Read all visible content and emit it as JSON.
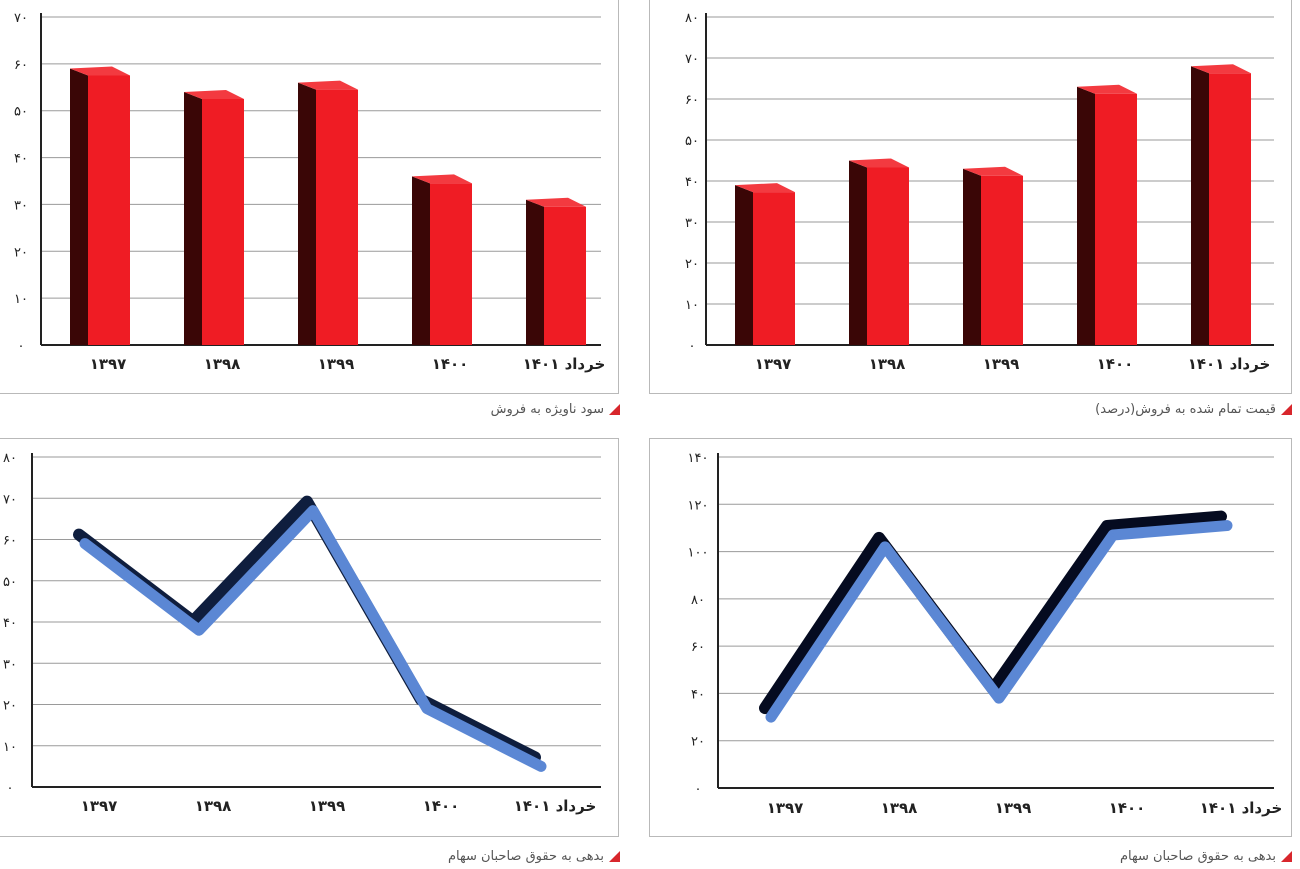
{
  "chart_data": [
    {
      "id": "top-left",
      "type": "bar",
      "caption": "سود ناویژه به فروش",
      "categories": [
        "۱۳۹۷",
        "۱۳۹۸",
        "۱۳۹۹",
        "۱۴۰۰",
        "خرداد ۱۴۰۱"
      ],
      "values": [
        59,
        54,
        56,
        36,
        31
      ],
      "ylim": [
        0,
        70
      ],
      "yticks": [
        "۰",
        "۱۰",
        "۲۰",
        "۳۰",
        "۴۰",
        "۵۰",
        "۶۰",
        "۷۰"
      ],
      "grid": true,
      "colors": {
        "front": "#ef1c24",
        "side": "#3a0606",
        "top": "#f33a40"
      }
    },
    {
      "id": "top-right",
      "type": "bar",
      "caption": "قیمت تمام شده به فروش(درصد)",
      "categories": [
        "۱۳۹۷",
        "۱۳۹۸",
        "۱۳۹۹",
        "۱۴۰۰",
        "خرداد ۱۴۰۱"
      ],
      "values": [
        39,
        45,
        43,
        63,
        68
      ],
      "ylim": [
        0,
        80
      ],
      "yticks": [
        "۰",
        "۱۰",
        "۲۰",
        "۳۰",
        "۴۰",
        "۵۰",
        "۶۰",
        "۷۰",
        "۸۰"
      ],
      "grid": true,
      "colors": {
        "front": "#ef1c24",
        "side": "#3a0606",
        "top": "#f33a40"
      }
    },
    {
      "id": "bottom-left",
      "type": "line",
      "caption": "بدهی به حقوق صاحبان سهام",
      "categories": [
        "۱۳۹۷",
        "۱۳۹۸",
        "۱۳۹۹",
        "۱۴۰۰",
        "خرداد ۱۴۰۱"
      ],
      "values": [
        59,
        38,
        67,
        19,
        5
      ],
      "ylim": [
        0,
        80
      ],
      "yticks": [
        "۰",
        "۱۰",
        "۲۰",
        "۳۰",
        "۴۰",
        "۵۰",
        "۶۰",
        "۷۰",
        "۸۰"
      ],
      "grid": true,
      "colors": {
        "line": "#5b87d4",
        "shadow": "#0f1e3e"
      }
    },
    {
      "id": "bottom-right",
      "type": "line",
      "caption": "بدهی به حقوق صاحبان سهام",
      "categories": [
        "۱۳۹۷",
        "۱۳۹۸",
        "۱۳۹۹",
        "۱۴۰۰",
        "خرداد ۱۴۰۱"
      ],
      "values": [
        30,
        102,
        38,
        107,
        111
      ],
      "ylim": [
        0,
        140
      ],
      "yticks": [
        "۰",
        "۲۰",
        "۴۰",
        "۶۰",
        "۸۰",
        "۱۰۰",
        "۱۲۰",
        "۱۴۰"
      ],
      "grid": true,
      "colors": {
        "line": "#5b87d4",
        "shadow": "#050b20"
      }
    }
  ]
}
